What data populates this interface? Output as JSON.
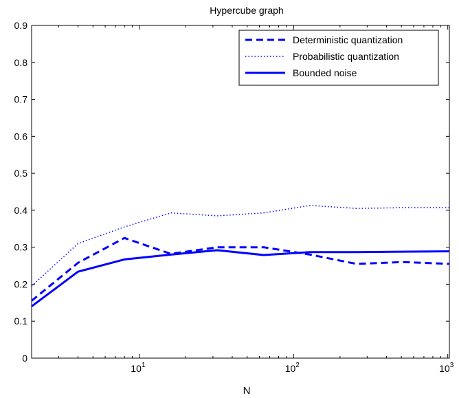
{
  "chart_data": {
    "type": "line",
    "title": "Hypercube graph",
    "xlabel": "N",
    "ylabel": "",
    "xscale": "log",
    "xlim": [
      2,
      1024
    ],
    "ylim": [
      0,
      0.9
    ],
    "yticks": [
      "0",
      "0.1",
      "0.2",
      "0.3",
      "0.4",
      "0.5",
      "0.6",
      "0.7",
      "0.8",
      "0.9"
    ],
    "xticks": [
      {
        "base": "10",
        "exp": "1",
        "value": 10
      },
      {
        "base": "10",
        "exp": "2",
        "value": 100
      },
      {
        "base": "10",
        "exp": "3",
        "value": 1000
      }
    ],
    "grid": false,
    "legend_position": "top-right",
    "x": [
      2,
      4,
      8,
      16,
      32,
      64,
      128,
      256,
      512,
      1024
    ],
    "series": [
      {
        "name": "Deterministic quantization",
        "style": "dashed",
        "color": "#0000ff",
        "values": [
          0.155,
          0.258,
          0.325,
          0.282,
          0.3,
          0.3,
          0.28,
          0.255,
          0.26,
          0.255
        ]
      },
      {
        "name": "Probabilistic quantization",
        "style": "dotted",
        "color": "#0000ff",
        "values": [
          0.195,
          0.31,
          0.355,
          0.393,
          0.385,
          0.393,
          0.413,
          0.405,
          0.407,
          0.407
        ]
      },
      {
        "name": "Bounded noise",
        "style": "solid",
        "color": "#0000ff",
        "values": [
          0.14,
          0.234,
          0.267,
          0.28,
          0.292,
          0.279,
          0.287,
          0.287,
          0.288,
          0.289
        ]
      }
    ]
  }
}
